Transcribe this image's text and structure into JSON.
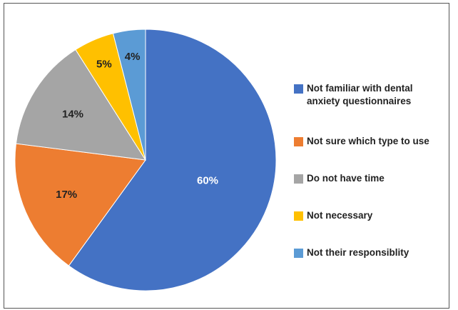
{
  "chart_data": {
    "type": "pie",
    "title": "",
    "legend_position": "right",
    "slices": [
      {
        "label": "Not familiar with dental anxiety questionnaires",
        "value": 60,
        "display": "60%",
        "color": "#4472C4",
        "label_color": "#ffffff"
      },
      {
        "label": "Not sure which type to use",
        "value": 17,
        "display": "17%",
        "color": "#ED7D31",
        "label_color": "#222222"
      },
      {
        "label": "Do not have time",
        "value": 14,
        "display": "14%",
        "color": "#A5A5A5",
        "label_color": "#222222"
      },
      {
        "label": "Not necessary",
        "value": 5,
        "display": "5%",
        "color": "#FFC000",
        "label_color": "#222222"
      },
      {
        "label": "Not their responsiblity",
        "value": 4,
        "display": "4%",
        "color": "#5B9BD5",
        "label_color": "#222222"
      }
    ]
  }
}
